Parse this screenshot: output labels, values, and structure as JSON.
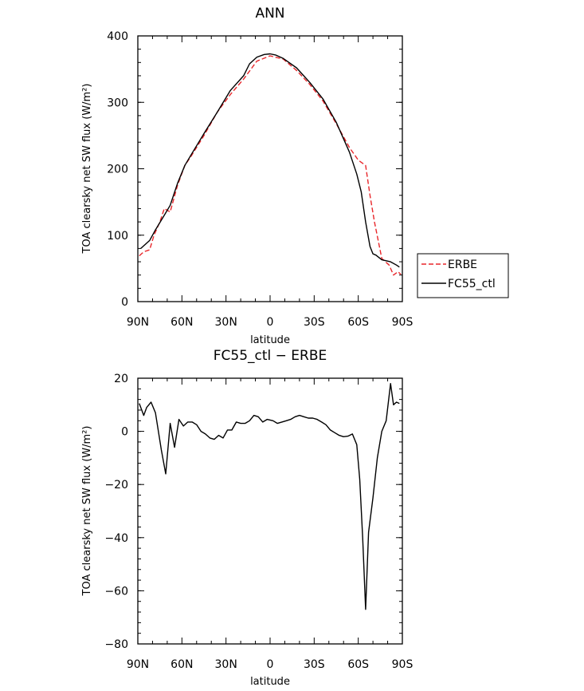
{
  "chart_data": [
    {
      "type": "line",
      "title": "ANN",
      "xlabel": "latitude",
      "ylabel": "TOA clearsky net SW flux (W/m²)",
      "xlim": [
        -90,
        90
      ],
      "ylim": [
        0,
        400
      ],
      "x_ticks": [
        -90,
        -60,
        -30,
        0,
        30,
        60,
        90
      ],
      "x_tick_labels": [
        "90N",
        "60N",
        "30N",
        "0",
        "30S",
        "60S",
        "90S"
      ],
      "y_ticks": [
        0,
        100,
        200,
        300,
        400
      ],
      "y_tick_labels": [
        "0",
        "100",
        "200",
        "300",
        "400"
      ],
      "legend_position": "right",
      "series": [
        {
          "name": "ERBE",
          "color": "#e8262a",
          "dash": "dashed",
          "x": [
            -89,
            -86,
            -82,
            -79,
            -75,
            -72,
            -68,
            -63,
            -58,
            -54,
            -45,
            -36,
            -27,
            -18,
            -9,
            0,
            9,
            18,
            27,
            36,
            45,
            54,
            60,
            65,
            68,
            71,
            76,
            81,
            84,
            87,
            89
          ],
          "y": [
            69,
            75,
            78,
            100,
            120,
            140,
            135,
            175,
            205,
            218,
            250,
            285,
            312,
            335,
            362,
            370,
            365,
            348,
            327,
            302,
            268,
            232,
            213,
            205,
            160,
            120,
            65,
            55,
            40,
            45,
            41
          ]
        },
        {
          "name": "FC55_ctl",
          "color": "#000000",
          "dash": "solid",
          "x": [
            -88,
            -82,
            -78,
            -72,
            -68,
            -63,
            -58,
            -54,
            -45,
            -36,
            -27,
            -18,
            -14,
            -9,
            -4,
            0,
            4,
            9,
            18,
            27,
            36,
            45,
            54,
            59,
            62,
            65,
            68,
            70,
            72,
            76,
            82,
            86,
            88
          ],
          "y": [
            80,
            92,
            108,
            130,
            145,
            178,
            205,
            220,
            253,
            285,
            318,
            340,
            358,
            368,
            372,
            373,
            371,
            366,
            352,
            330,
            305,
            270,
            225,
            192,
            165,
            120,
            83,
            72,
            70,
            63,
            60,
            55,
            52
          ]
        }
      ]
    },
    {
      "type": "line",
      "title": "FC55_ctl − ERBE",
      "xlabel": "latitude",
      "ylabel": "TOA clearsky net SW flux (W/m²)",
      "xlim": [
        -90,
        90
      ],
      "ylim": [
        -80,
        20
      ],
      "x_ticks": [
        -90,
        -60,
        -30,
        0,
        30,
        60,
        90
      ],
      "x_tick_labels": [
        "90N",
        "60N",
        "30N",
        "0",
        "30S",
        "60S",
        "90S"
      ],
      "y_ticks": [
        -80,
        -60,
        -40,
        -20,
        0,
        20
      ],
      "y_tick_labels": [
        "−80",
        "−60",
        "−40",
        "−20",
        "0",
        "20"
      ],
      "series": [
        {
          "color": "#000000",
          "dash": "solid",
          "x": [
            -89,
            -86,
            -84,
            -81,
            -78,
            -74,
            -71,
            -68,
            -65,
            -62,
            -59,
            -56,
            -53,
            -50,
            -47,
            -44,
            -41,
            -38,
            -35,
            -32,
            -29,
            -26,
            -23,
            -20,
            -17,
            -14,
            -11,
            -8,
            -5,
            -2,
            2,
            5,
            8,
            11,
            14,
            17,
            20,
            23,
            26,
            29,
            32,
            35,
            38,
            41,
            44,
            47,
            50,
            53,
            56,
            59,
            61,
            63,
            65,
            67,
            70,
            73,
            76,
            79,
            82,
            84,
            86,
            88
          ],
          "y": [
            10.5,
            6,
            9,
            11,
            7,
            -7,
            -16,
            3,
            -6,
            4.5,
            2,
            3.5,
            3.5,
            2.5,
            0,
            -1,
            -2.5,
            -3,
            -1.5,
            -2.5,
            0.5,
            0.5,
            3.5,
            3,
            3,
            4,
            6,
            5.5,
            3.5,
            4.5,
            4,
            3,
            3.5,
            4,
            4.5,
            5.5,
            6,
            5.5,
            5,
            5,
            4.5,
            3.5,
            2.5,
            0.5,
            -0.5,
            -1.5,
            -2,
            -1.8,
            -1,
            -5,
            -18,
            -40,
            -67,
            -38,
            -25,
            -10,
            0,
            4,
            18,
            10,
            11,
            10.5
          ]
        }
      ]
    }
  ],
  "legend": {
    "erbe_label": "ERBE",
    "fc55_label": "FC55_ctl",
    "erbe_color": "#e8262a",
    "fc55_color": "#000000"
  }
}
